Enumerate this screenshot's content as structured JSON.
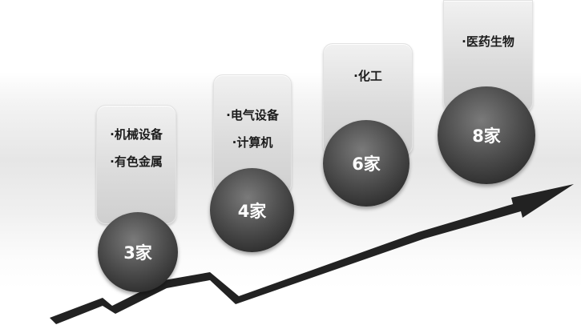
{
  "steps": [
    {
      "items": [
        "·机械设备",
        "·有色金属"
      ],
      "count": "3家"
    },
    {
      "items": [
        "·电气设备",
        "·计算机"
      ],
      "count": "4家"
    },
    {
      "items": [
        "·化工"
      ],
      "count": "6家"
    },
    {
      "items": [
        "·医药生物"
      ],
      "count": "8家"
    }
  ]
}
